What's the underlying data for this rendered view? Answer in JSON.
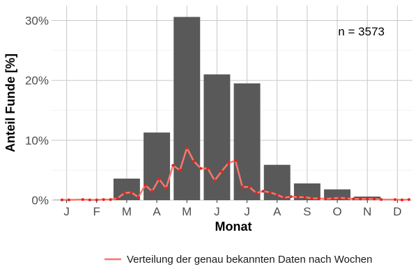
{
  "chart_data": {
    "type": "bar",
    "categories": [
      "J",
      "F",
      "M",
      "A",
      "M",
      "J",
      "J",
      "A",
      "S",
      "O",
      "N",
      "D"
    ],
    "values": [
      0.05,
      0.1,
      3.6,
      11.3,
      30.6,
      21.0,
      19.5,
      5.9,
      2.8,
      1.8,
      0.6,
      0.05
    ],
    "xlabel": "Monat",
    "ylabel": "Anteil Funde [%]",
    "ylim": [
      0,
      32.5
    ],
    "yticks": [
      0,
      10,
      20,
      30
    ],
    "ytick_labels": [
      "0%",
      "10%",
      "20%",
      "30%"
    ],
    "annotation": "n = 3573",
    "grid": true,
    "bar_color": "#595959",
    "line_series": {
      "name": "Verteilung der genau bekannten Daten nach Wochen",
      "color": "#f8766d",
      "point_color": "#e8231a",
      "x": [
        1.5,
        2.5,
        4.5,
        5.5,
        6.5,
        7.5,
        8.5,
        9.5,
        10.5,
        11.5,
        12.5,
        13.5,
        14.5,
        15.5,
        16.5,
        17.5,
        18.5,
        19.5,
        20.5,
        21.5,
        22.5,
        23.5,
        24.5,
        25.5,
        26.5,
        27.5,
        28.5,
        29.5,
        30.5,
        31.5,
        32.5,
        33.5,
        34.5,
        35.5,
        36.5,
        37.5,
        38.5,
        39.5,
        40.5,
        41.5,
        42.5,
        43.5,
        44.5,
        45.5,
        46.5,
        47.5,
        49.5,
        50.5,
        51.5
      ],
      "y": [
        0.05,
        0.05,
        0.1,
        0.05,
        0.05,
        0.1,
        0.1,
        0.3,
        1.2,
        1.3,
        0.5,
        2.5,
        1.5,
        3.5,
        2.0,
        5.8,
        5.0,
        8.7,
        6.5,
        5.3,
        5.3,
        3.3,
        4.8,
        6.2,
        6.6,
        2.2,
        2.2,
        1.2,
        1.5,
        1.3,
        0.9,
        0.4,
        0.6,
        0.5,
        0.5,
        0.3,
        0.3,
        0.2,
        0.3,
        0.4,
        0.3,
        0.2,
        0.2,
        0.2,
        0.2,
        0.1,
        0.1,
        0.05,
        0.1
      ]
    }
  }
}
